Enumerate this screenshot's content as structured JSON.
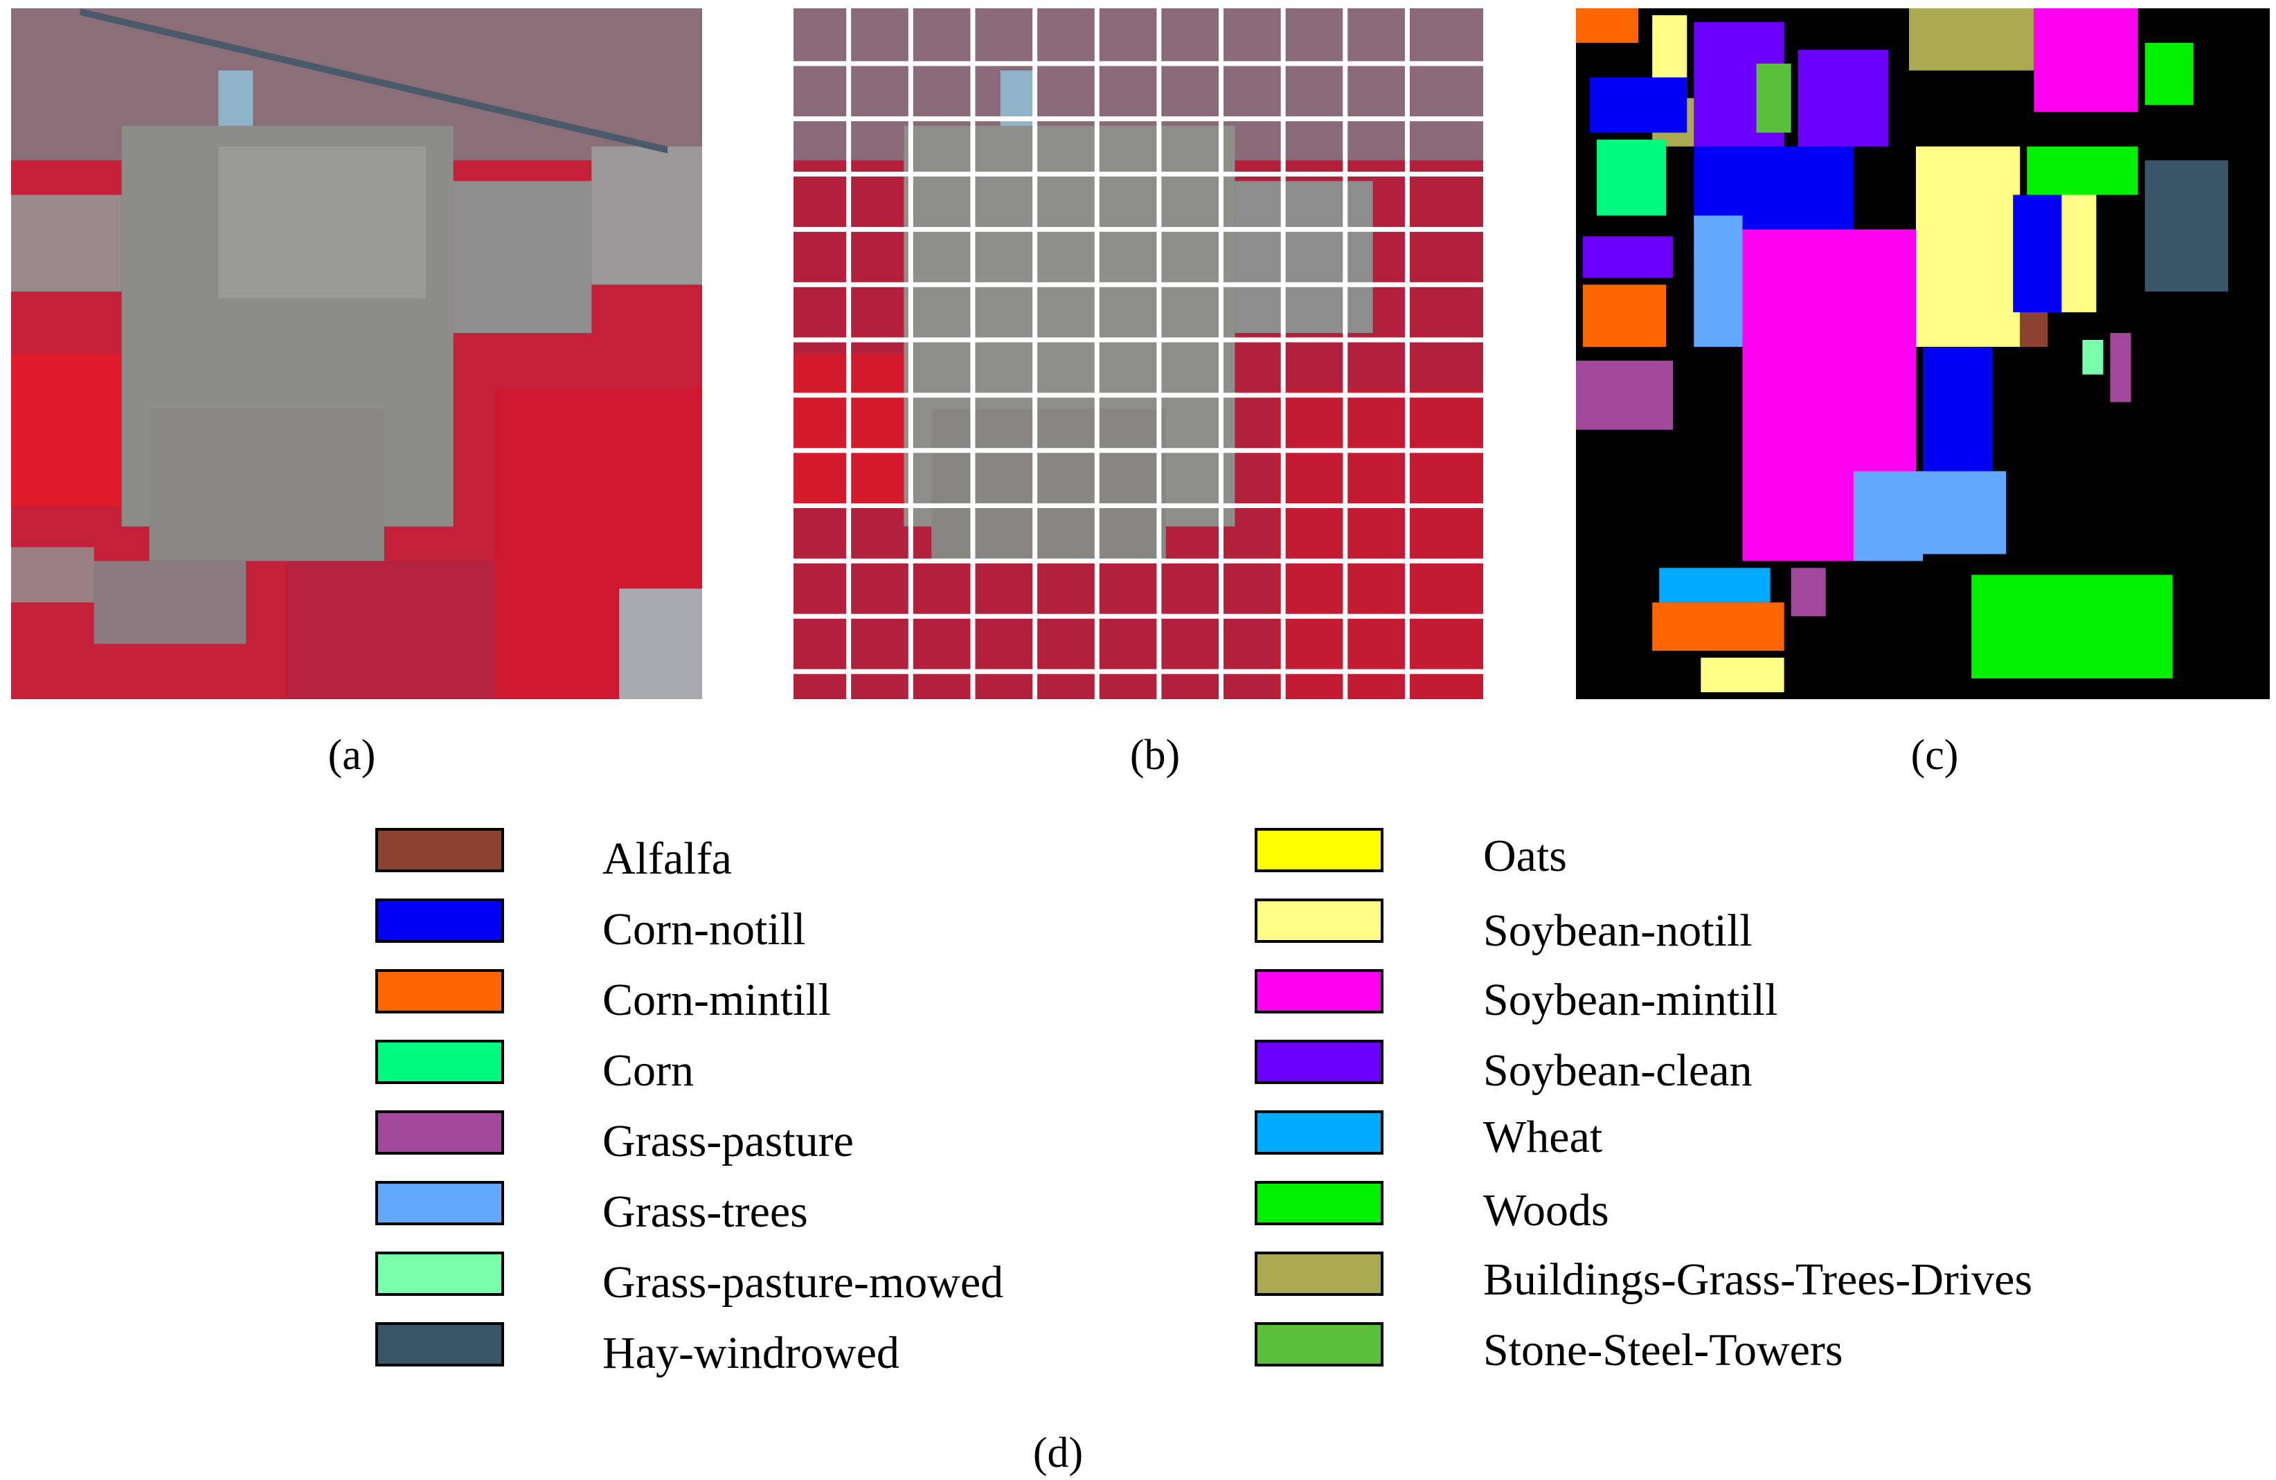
{
  "panels": [
    {
      "id": "a",
      "caption": "(a)"
    },
    {
      "id": "b",
      "caption": "(b)"
    },
    {
      "id": "c",
      "caption": "(c)"
    }
  ],
  "legend_caption": "(d)",
  "legend": {
    "left": [
      {
        "label": "Alfalfa",
        "color": "#8B4231"
      },
      {
        "label": "Corn-notill",
        "color": "#0000F5"
      },
      {
        "label": "Corn-mintill",
        "color": "#FF6600"
      },
      {
        "label": "Corn",
        "color": "#00FA7F"
      },
      {
        "label": "Grass-pasture",
        "color": "#A1489C"
      },
      {
        "label": "Grass-trees",
        "color": "#62A8FF"
      },
      {
        "label": "Grass-pasture-mowed",
        "color": "#7AFFAC"
      },
      {
        "label": "Hay-windrowed",
        "color": "#3A5568"
      }
    ],
    "right": [
      {
        "label": "Oats",
        "color": "#FFFF00"
      },
      {
        "label": "Soybean-notill",
        "color": "#FFFF88"
      },
      {
        "label": "Soybean-mintill",
        "color": "#FF00F0"
      },
      {
        "label": "Soybean-clean",
        "color": "#6B00FF"
      },
      {
        "label": "Wheat",
        "color": "#00AAFF"
      },
      {
        "label": "Woods",
        "color": "#00F000"
      },
      {
        "label": "Buildings-Grass-Trees-Drives",
        "color": "#AAAA50"
      },
      {
        "label": "Stone-Steel-Towers",
        "color": "#5ABF3A"
      }
    ]
  }
}
